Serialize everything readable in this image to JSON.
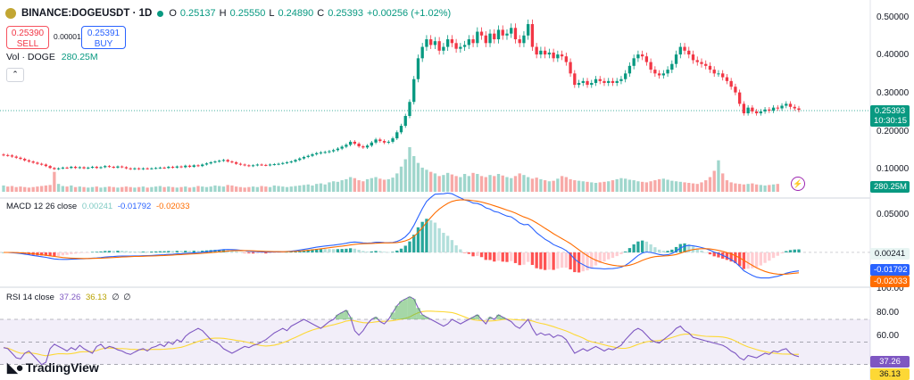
{
  "symbol": {
    "name": "BINANCE:DOGEUSDT · 1D",
    "ohlc": {
      "o_label": "O",
      "o": "0.25137",
      "h_label": "H",
      "h": "0.25550",
      "l_label": "L",
      "l": "0.24890",
      "c_label": "C",
      "c": "0.25393",
      "change": "+0.00256 (+1.02%)"
    }
  },
  "trade": {
    "sell_price": "0.25390",
    "sell_label": "SELL",
    "spread": "0.00001",
    "buy_price": "0.25391",
    "buy_label": "BUY"
  },
  "volume_legend": {
    "label": "Vol · DOGE",
    "value": "280.25M"
  },
  "macd_legend": {
    "label": "MACD 12 26 close",
    "hist": "0.00241",
    "macd": "-0.01792",
    "signal": "-0.02033"
  },
  "rsi_legend": {
    "label": "RSI 14 close",
    "rsi": "37.26",
    "ma": "36.13",
    "a": "∅",
    "b": "∅"
  },
  "price_axis": [
    "0.50000",
    "0.40000",
    "0.30000",
    "0.20000",
    "0.10000"
  ],
  "macd_axis": [
    "0.05000"
  ],
  "rsi_axis": [
    "100.00",
    "80.00",
    "60.00"
  ],
  "price_tag": {
    "price": "0.25393",
    "countdown": "10:30:15"
  },
  "volume_tag": "280.25M",
  "macd_tags": {
    "hist": "0.00241",
    "macd": "-0.01792",
    "signal": "-0.02033"
  },
  "rsi_tags": {
    "rsi": "37.26",
    "ma": "36.13"
  },
  "brand": "TradingView",
  "colors": {
    "up": "#089981",
    "down": "#f23645",
    "macd": "#2962ff",
    "signal": "#ff6d00",
    "rsi": "#7e57c2",
    "rsi_ma": "#fdd835"
  },
  "chart_data": {
    "type": "candlestick",
    "price_range": [
      0.05,
      0.52
    ],
    "closes": [
      0.135,
      0.134,
      0.131,
      0.128,
      0.125,
      0.121,
      0.118,
      0.115,
      0.112,
      0.11,
      0.106,
      0.101,
      0.098,
      0.1,
      0.102,
      0.101,
      0.104,
      0.101,
      0.103,
      0.1,
      0.102,
      0.104,
      0.101,
      0.103,
      0.106,
      0.104,
      0.102,
      0.105,
      0.103,
      0.1,
      0.098,
      0.1,
      0.098,
      0.1,
      0.099,
      0.1,
      0.101,
      0.102,
      0.101,
      0.104,
      0.102,
      0.105,
      0.103,
      0.107,
      0.104,
      0.108,
      0.106,
      0.11,
      0.113,
      0.116,
      0.118,
      0.12,
      0.122,
      0.118,
      0.116,
      0.112,
      0.11,
      0.108,
      0.106,
      0.108,
      0.11,
      0.109,
      0.108,
      0.11,
      0.111,
      0.112,
      0.114,
      0.116,
      0.118,
      0.122,
      0.126,
      0.13,
      0.133,
      0.137,
      0.14,
      0.142,
      0.143,
      0.145,
      0.148,
      0.152,
      0.157,
      0.162,
      0.17,
      0.165,
      0.158,
      0.155,
      0.16,
      0.168,
      0.176,
      0.172,
      0.168,
      0.17,
      0.179,
      0.195,
      0.212,
      0.238,
      0.275,
      0.335,
      0.39,
      0.42,
      0.44,
      0.425,
      0.435,
      0.41,
      0.42,
      0.44,
      0.43,
      0.415,
      0.42,
      0.425,
      0.44,
      0.43,
      0.46,
      0.45,
      0.43,
      0.455,
      0.44,
      0.465,
      0.45,
      0.455,
      0.47,
      0.44,
      0.43,
      0.45,
      0.48,
      0.42,
      0.4,
      0.41,
      0.4,
      0.405,
      0.39,
      0.4,
      0.395,
      0.38,
      0.35,
      0.32,
      0.325,
      0.33,
      0.32,
      0.325,
      0.335,
      0.33,
      0.325,
      0.33,
      0.325,
      0.33,
      0.335,
      0.35,
      0.37,
      0.39,
      0.4,
      0.395,
      0.38,
      0.36,
      0.35,
      0.345,
      0.35,
      0.36,
      0.375,
      0.4,
      0.42,
      0.41,
      0.4,
      0.385,
      0.38,
      0.375,
      0.37,
      0.36,
      0.35,
      0.35,
      0.34,
      0.33,
      0.315,
      0.3,
      0.27,
      0.245,
      0.26,
      0.25,
      0.245,
      0.25,
      0.255,
      0.252,
      0.26,
      0.258,
      0.265,
      0.27,
      0.262,
      0.258,
      0.254
    ],
    "volumes": [
      12,
      10,
      11,
      9,
      10,
      9,
      8,
      9,
      10,
      11,
      12,
      13,
      38,
      15,
      11,
      10,
      12,
      9,
      10,
      9,
      8,
      9,
      10,
      8,
      9,
      10,
      9,
      8,
      9,
      10,
      9,
      8,
      9,
      10,
      8,
      9,
      10,
      11,
      9,
      10,
      9,
      8,
      9,
      10,
      8,
      9,
      11,
      10,
      9,
      10,
      12,
      11,
      10,
      13,
      12,
      10,
      9,
      8,
      9,
      10,
      9,
      11,
      10,
      9,
      12,
      11,
      10,
      9,
      10,
      11,
      12,
      13,
      14,
      12,
      15,
      16,
      14,
      18,
      20,
      19,
      22,
      24,
      28,
      26,
      22,
      20,
      24,
      26,
      28,
      25,
      23,
      24,
      27,
      35,
      48,
      62,
      85,
      68,
      55,
      46,
      42,
      38,
      35,
      30,
      32,
      36,
      33,
      30,
      28,
      34,
      30,
      36,
      34,
      30,
      28,
      32,
      30,
      34,
      31,
      28,
      26,
      30,
      35,
      32,
      28,
      25,
      27,
      24,
      22,
      20,
      21,
      25,
      30,
      28,
      24,
      22,
      21,
      20,
      19,
      18,
      17,
      18,
      19,
      20,
      22,
      24,
      26,
      25,
      23,
      22,
      20,
      19,
      18,
      20,
      22,
      24,
      25,
      23,
      21,
      20,
      19,
      18,
      17,
      16,
      15,
      18,
      22,
      28,
      40,
      60,
      35,
      22,
      18,
      16,
      15,
      14,
      15,
      16,
      14,
      13,
      12,
      13,
      14,
      15
    ],
    "rsi": [
      45,
      44,
      40,
      36,
      35,
      40,
      42,
      38,
      34,
      30,
      32,
      44,
      48,
      46,
      44,
      42,
      45,
      43,
      47,
      44,
      42,
      40,
      46,
      48,
      44,
      46,
      45,
      43,
      42,
      40,
      39,
      41,
      43,
      44,
      42,
      45,
      46,
      48,
      46,
      50,
      48,
      52,
      50,
      55,
      58,
      60,
      62,
      60,
      56,
      52,
      50,
      48,
      44,
      42,
      40,
      42,
      44,
      46,
      45,
      47,
      48,
      50,
      52,
      55,
      58,
      60,
      62,
      60,
      64,
      66,
      68,
      70,
      68,
      66,
      64,
      62,
      65,
      68,
      70,
      74,
      76,
      78,
      72,
      60,
      56,
      60,
      66,
      70,
      72,
      68,
      66,
      70,
      76,
      82,
      86,
      88,
      90,
      88,
      80,
      74,
      72,
      70,
      68,
      66,
      64,
      66,
      70,
      68,
      66,
      68,
      70,
      72,
      74,
      70,
      66,
      72,
      70,
      74,
      72,
      70,
      68,
      64,
      62,
      66,
      70,
      62,
      56,
      58,
      56,
      57,
      54,
      56,
      55,
      52,
      46,
      40,
      42,
      44,
      42,
      44,
      46,
      44,
      42,
      44,
      43,
      45,
      47,
      52,
      56,
      60,
      62,
      60,
      56,
      52,
      50,
      49,
      52,
      55,
      58,
      62,
      64,
      60,
      58,
      54,
      53,
      52,
      51,
      50,
      49,
      48,
      47,
      45,
      42,
      40,
      36,
      34,
      38,
      37,
      36,
      38,
      40,
      39,
      42,
      41,
      43,
      44,
      40,
      38,
      37
    ],
    "rsi_range": [
      25,
      100
    ],
    "macd_range": [
      -0.04,
      0.065
    ]
  }
}
